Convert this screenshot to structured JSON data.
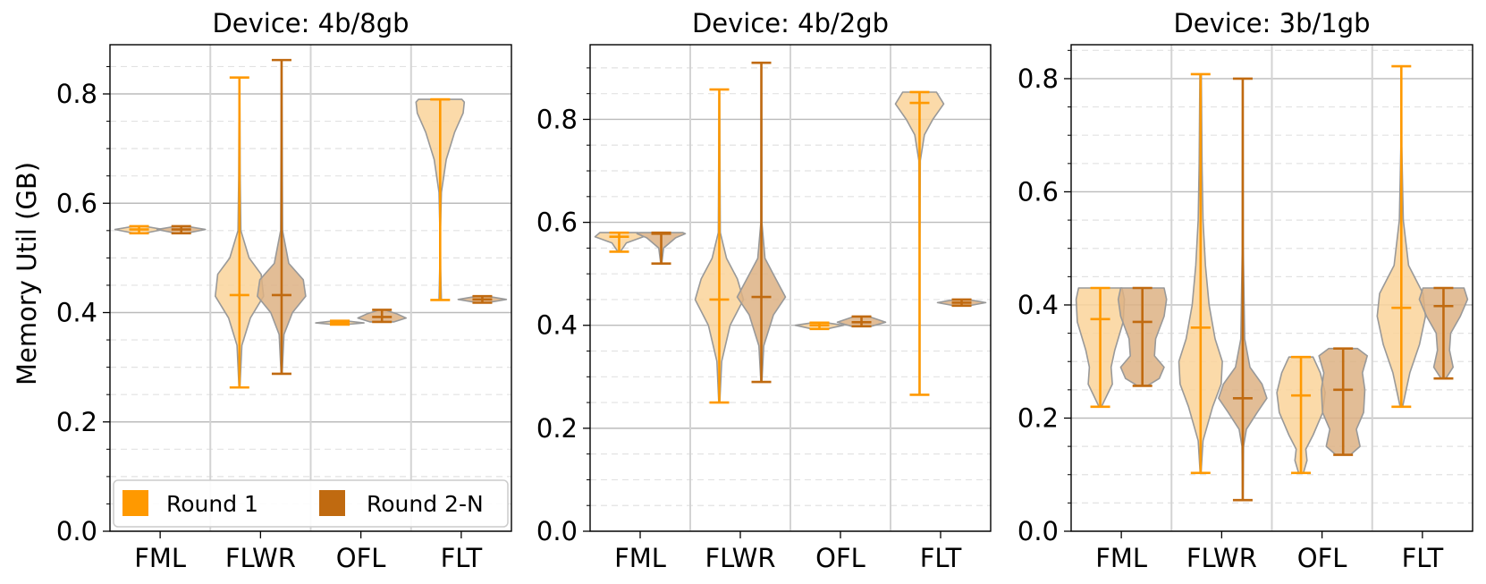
{
  "figure": {
    "ylabel": "Memory Util (GB)"
  },
  "colors": {
    "round1": "#FF9900",
    "round2": "#C06A10",
    "violin1_fill": "#FAD39A",
    "violin2_fill": "#DDB284",
    "violin_edge": "#999999",
    "grid_major": "#BBBBBB",
    "grid_minor": "#E2E2E2",
    "separator": "#D3D3D3"
  },
  "legend": {
    "items": [
      "Round 1",
      "Round 2-N"
    ],
    "location": "lower-left"
  },
  "chart_data": [
    {
      "type": "violin",
      "title": "Device: 4b/8gb",
      "xlabel": "",
      "ylabel": "Memory Util (GB)",
      "categories": [
        "FML",
        "FLWR",
        "OFL",
        "FLT"
      ],
      "ylim": [
        0,
        0.89
      ],
      "yticks": [
        0.0,
        0.2,
        0.4,
        0.6,
        0.8
      ],
      "yticklabels": [
        "0.0",
        "0.2",
        "0.4",
        "0.6",
        "0.8"
      ],
      "series": [
        {
          "name": "Round 1",
          "stats": [
            {
              "min": 0.545,
              "max": 0.558,
              "median": 0.552,
              "density": [
                [
                  0.545,
                  0.2
                ],
                [
                  0.552,
                  1.0
                ],
                [
                  0.558,
                  0.2
                ]
              ]
            },
            {
              "min": 0.263,
              "max": 0.83,
              "median": 0.432,
              "density": [
                [
                  0.263,
                  0.02
                ],
                [
                  0.34,
                  0.1
                ],
                [
                  0.39,
                  0.45
                ],
                [
                  0.43,
                  1.0
                ],
                [
                  0.47,
                  0.9
                ],
                [
                  0.5,
                  0.4
                ],
                [
                  0.55,
                  0.06
                ],
                [
                  0.65,
                  0.03
                ],
                [
                  0.83,
                  0.01
                ]
              ]
            },
            {
              "min": 0.378,
              "max": 0.385,
              "median": 0.381,
              "density": [
                [
                  0.378,
                  0.2
                ],
                [
                  0.381,
                  1.0
                ],
                [
                  0.385,
                  0.2
                ]
              ]
            },
            {
              "min": 0.423,
              "max": 0.79,
              "median": 0.79,
              "density": [
                [
                  0.423,
                  0.05
                ],
                [
                  0.48,
                  0.02
                ],
                [
                  0.55,
                  0.01
                ],
                [
                  0.62,
                  0.05
                ],
                [
                  0.68,
                  0.25
                ],
                [
                  0.73,
                  0.6
                ],
                [
                  0.765,
                  0.95
                ],
                [
                  0.785,
                  1.0
                ],
                [
                  0.79,
                  0.9
                ]
              ]
            }
          ]
        },
        {
          "name": "Round 2-N",
          "stats": [
            {
              "min": 0.545,
              "max": 0.558,
              "median": 0.552,
              "density": [
                [
                  0.545,
                  0.2
                ],
                [
                  0.552,
                  1.0
                ],
                [
                  0.558,
                  0.2
                ]
              ]
            },
            {
              "min": 0.288,
              "max": 0.862,
              "median": 0.432,
              "density": [
                [
                  0.288,
                  0.02
                ],
                [
                  0.36,
                  0.1
                ],
                [
                  0.4,
                  0.45
                ],
                [
                  0.43,
                  1.0
                ],
                [
                  0.46,
                  0.9
                ],
                [
                  0.49,
                  0.3
                ],
                [
                  0.55,
                  0.04
                ],
                [
                  0.86,
                  0.01
                ]
              ]
            },
            {
              "min": 0.383,
              "max": 0.405,
              "median": 0.392,
              "density": [
                [
                  0.383,
                  0.5
                ],
                [
                  0.39,
                  1.0
                ],
                [
                  0.398,
                  0.6
                ],
                [
                  0.405,
                  0.1
                ]
              ]
            },
            {
              "min": 0.418,
              "max": 0.43,
              "median": 0.424,
              "density": [
                [
                  0.418,
                  0.2
                ],
                [
                  0.424,
                  1.0
                ],
                [
                  0.43,
                  0.2
                ]
              ]
            }
          ]
        }
      ]
    },
    {
      "type": "violin",
      "title": "Device: 4b/2gb",
      "xlabel": "",
      "ylabel": "",
      "categories": [
        "FML",
        "FLWR",
        "OFL",
        "FLT"
      ],
      "ylim": [
        0,
        0.945
      ],
      "yticks": [
        0.0,
        0.2,
        0.4,
        0.6,
        0.8
      ],
      "yticklabels": [
        "0.0",
        "0.2",
        "0.4",
        "0.6",
        "0.8"
      ],
      "series": [
        {
          "name": "Round 1",
          "stats": [
            {
              "min": 0.543,
              "max": 0.58,
              "median": 0.572,
              "density": [
                [
                  0.543,
                  0.05
                ],
                [
                  0.56,
                  0.3
                ],
                [
                  0.572,
                  1.0
                ],
                [
                  0.58,
                  0.8
                ]
              ]
            },
            {
              "min": 0.25,
              "max": 0.858,
              "median": 0.45,
              "density": [
                [
                  0.25,
                  0.02
                ],
                [
                  0.33,
                  0.1
                ],
                [
                  0.4,
                  0.45
                ],
                [
                  0.45,
                  1.0
                ],
                [
                  0.49,
                  0.75
                ],
                [
                  0.53,
                  0.3
                ],
                [
                  0.58,
                  0.04
                ],
                [
                  0.85,
                  0.01
                ]
              ]
            },
            {
              "min": 0.393,
              "max": 0.405,
              "median": 0.4,
              "density": [
                [
                  0.393,
                  0.3
                ],
                [
                  0.4,
                  1.0
                ],
                [
                  0.405,
                  0.3
                ]
              ]
            },
            {
              "min": 0.265,
              "max": 0.853,
              "median": 0.832,
              "density": [
                [
                  0.265,
                  0.01
                ],
                [
                  0.55,
                  0.01
                ],
                [
                  0.72,
                  0.03
                ],
                [
                  0.77,
                  0.2
                ],
                [
                  0.8,
                  0.55
                ],
                [
                  0.83,
                  1.0
                ],
                [
                  0.853,
                  0.7
                ]
              ]
            }
          ]
        },
        {
          "name": "Round 2-N",
          "stats": [
            {
              "min": 0.52,
              "max": 0.58,
              "median": 0.578,
              "density": [
                [
                  0.52,
                  0.02
                ],
                [
                  0.55,
                  0.1
                ],
                [
                  0.57,
                  0.6
                ],
                [
                  0.578,
                  1.0
                ],
                [
                  0.58,
                  0.9
                ]
              ]
            },
            {
              "min": 0.29,
              "max": 0.91,
              "median": 0.455,
              "density": [
                [
                  0.29,
                  0.02
                ],
                [
                  0.36,
                  0.1
                ],
                [
                  0.42,
                  0.5
                ],
                [
                  0.455,
                  1.0
                ],
                [
                  0.49,
                  0.6
                ],
                [
                  0.53,
                  0.15
                ],
                [
                  0.6,
                  0.02
                ],
                [
                  0.91,
                  0.01
                ]
              ]
            },
            {
              "min": 0.398,
              "max": 0.417,
              "median": 0.406,
              "density": [
                [
                  0.398,
                  0.4
                ],
                [
                  0.406,
                  1.0
                ],
                [
                  0.417,
                  0.3
                ]
              ]
            },
            {
              "min": 0.438,
              "max": 0.45,
              "median": 0.444,
              "density": [
                [
                  0.438,
                  0.3
                ],
                [
                  0.444,
                  1.0
                ],
                [
                  0.45,
                  0.3
                ]
              ]
            }
          ]
        }
      ]
    },
    {
      "type": "violin",
      "title": "Device: 3b/1gb",
      "xlabel": "",
      "ylabel": "",
      "categories": [
        "FML",
        "FLWR",
        "OFL",
        "FLT"
      ],
      "ylim": [
        0,
        0.86
      ],
      "yticks": [
        0.0,
        0.2,
        0.4,
        0.6,
        0.8
      ],
      "yticklabels": [
        "0.0",
        "0.2",
        "0.4",
        "0.6",
        "0.8"
      ],
      "series": [
        {
          "name": "Round 1",
          "stats": [
            {
              "min": 0.22,
              "max": 0.43,
              "median": 0.375,
              "density": [
                [
                  0.22,
                  0.05
                ],
                [
                  0.26,
                  0.5
                ],
                [
                  0.29,
                  0.45
                ],
                [
                  0.32,
                  0.6
                ],
                [
                  0.37,
                  0.95
                ],
                [
                  0.41,
                  1.0
                ],
                [
                  0.43,
                  0.9
                ]
              ]
            },
            {
              "min": 0.103,
              "max": 0.808,
              "median": 0.36,
              "density": [
                [
                  0.103,
                  0.02
                ],
                [
                  0.16,
                  0.1
                ],
                [
                  0.22,
                  0.5
                ],
                [
                  0.26,
                  0.85
                ],
                [
                  0.3,
                  0.9
                ],
                [
                  0.34,
                  0.6
                ],
                [
                  0.4,
                  0.35
                ],
                [
                  0.47,
                  0.2
                ],
                [
                  0.55,
                  0.1
                ],
                [
                  0.65,
                  0.06
                ],
                [
                  0.75,
                  0.04
                ],
                [
                  0.808,
                  0.03
                ]
              ]
            },
            {
              "min": 0.103,
              "max": 0.308,
              "median": 0.24,
              "density": [
                [
                  0.103,
                  0.1
                ],
                [
                  0.125,
                  0.25
                ],
                [
                  0.145,
                  0.2
                ],
                [
                  0.17,
                  0.5
                ],
                [
                  0.21,
                  0.9
                ],
                [
                  0.245,
                  1.0
                ],
                [
                  0.28,
                  0.8
                ],
                [
                  0.308,
                  0.5
                ]
              ]
            },
            {
              "min": 0.22,
              "max": 0.822,
              "median": 0.395,
              "density": [
                [
                  0.22,
                  0.05
                ],
                [
                  0.28,
                  0.35
                ],
                [
                  0.33,
                  0.75
                ],
                [
                  0.38,
                  1.0
                ],
                [
                  0.42,
                  0.9
                ],
                [
                  0.47,
                  0.3
                ],
                [
                  0.55,
                  0.08
                ],
                [
                  0.68,
                  0.02
                ],
                [
                  0.822,
                  0.01
                ]
              ]
            }
          ]
        },
        {
          "name": "Round 2-N",
          "stats": [
            {
              "min": 0.257,
              "max": 0.43,
              "median": 0.37,
              "density": [
                [
                  0.257,
                  0.2
                ],
                [
                  0.27,
                  0.7
                ],
                [
                  0.29,
                  0.9
                ],
                [
                  0.31,
                  0.5
                ],
                [
                  0.34,
                  0.55
                ],
                [
                  0.38,
                  0.9
                ],
                [
                  0.41,
                  1.0
                ],
                [
                  0.43,
                  0.9
                ]
              ]
            },
            {
              "min": 0.055,
              "max": 0.8,
              "median": 0.235,
              "density": [
                [
                  0.055,
                  0.01
                ],
                [
                  0.15,
                  0.03
                ],
                [
                  0.18,
                  0.15
                ],
                [
                  0.21,
                  0.6
                ],
                [
                  0.235,
                  1.0
                ],
                [
                  0.26,
                  0.8
                ],
                [
                  0.29,
                  0.3
                ],
                [
                  0.34,
                  0.08
                ],
                [
                  0.5,
                  0.02
                ],
                [
                  0.8,
                  0.01
                ]
              ]
            },
            {
              "min": 0.135,
              "max": 0.323,
              "median": 0.25,
              "density": [
                [
                  0.135,
                  0.3
                ],
                [
                  0.15,
                  0.7
                ],
                [
                  0.18,
                  0.55
                ],
                [
                  0.21,
                  0.85
                ],
                [
                  0.25,
                  0.9
                ],
                [
                  0.28,
                  0.8
                ],
                [
                  0.31,
                  1.0
                ],
                [
                  0.323,
                  0.6
                ]
              ]
            },
            {
              "min": 0.27,
              "max": 0.43,
              "median": 0.398,
              "density": [
                [
                  0.27,
                  0.1
                ],
                [
                  0.29,
                  0.4
                ],
                [
                  0.32,
                  0.25
                ],
                [
                  0.35,
                  0.3
                ],
                [
                  0.38,
                  0.7
                ],
                [
                  0.41,
                  1.0
                ],
                [
                  0.43,
                  0.85
                ]
              ]
            }
          ]
        }
      ]
    }
  ]
}
